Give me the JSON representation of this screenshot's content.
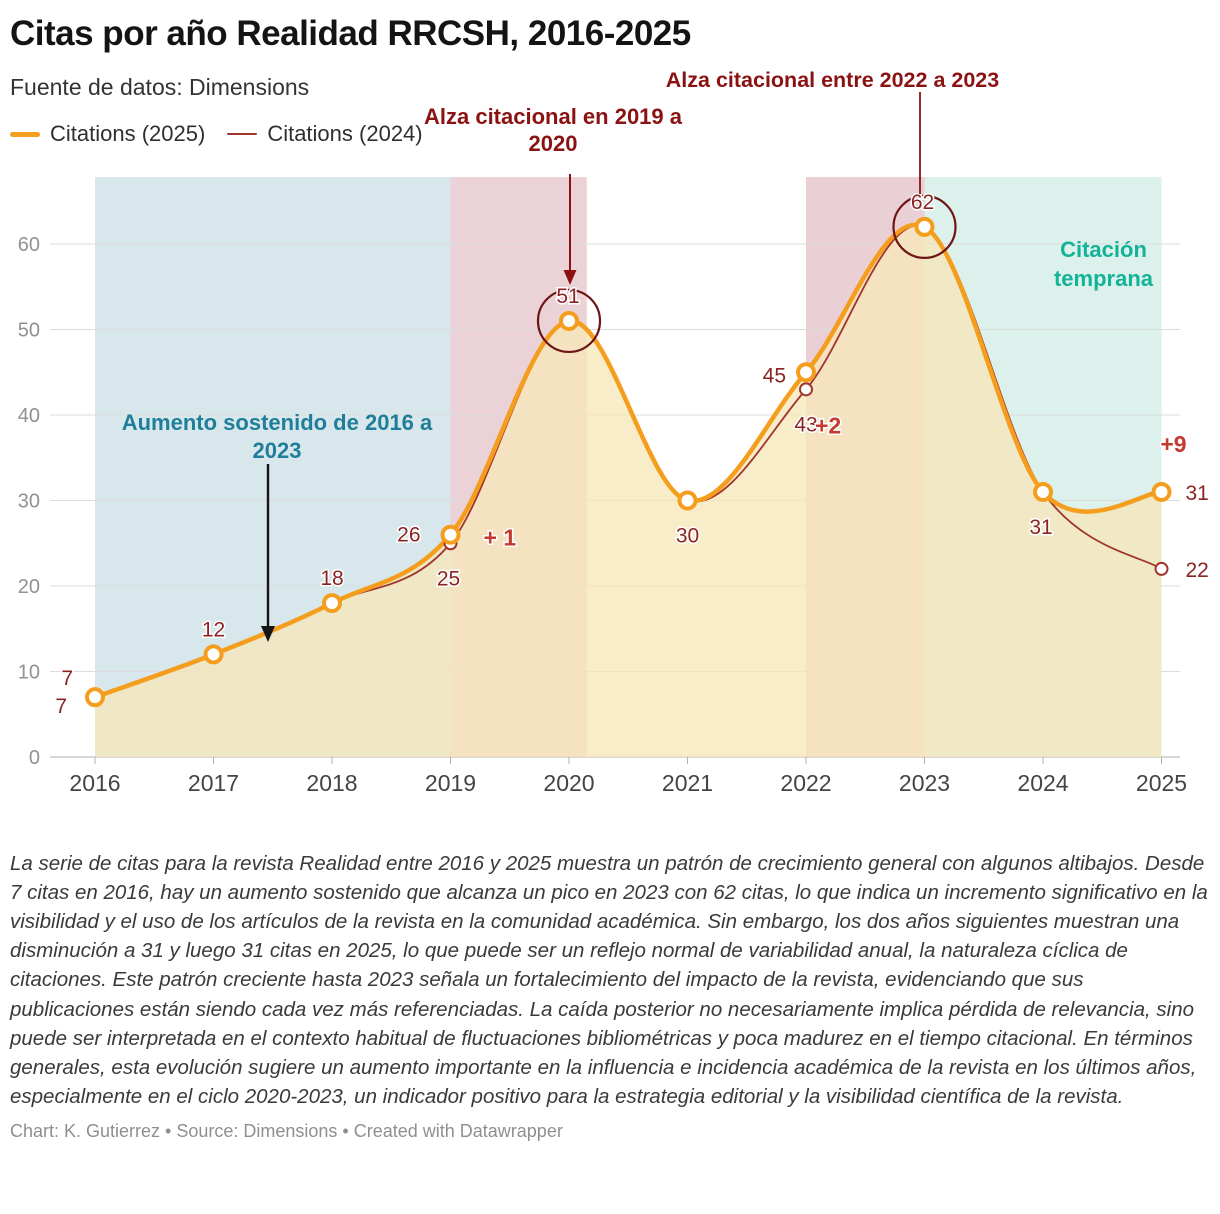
{
  "header": {
    "title": "Citas por año Realidad RRCSH, 2016-2025",
    "subtitle": "Fuente de datos: Dimensions"
  },
  "legend": [
    {
      "label": "Citations (2025)",
      "color": "#f59e1d",
      "thick": true
    },
    {
      "label": "Citations (2024)",
      "color": "#a0352c",
      "thick": false
    }
  ],
  "annotations": {
    "sustained_growth": "Aumento sostenido de 2016 a 2023",
    "rise_2019_2020": "Alza citacional en 2019 a 2020",
    "rise_2022_2023": "Alza citacional entre 2022 a 2023",
    "early_citation": "Citación temprana"
  },
  "chart_data": {
    "type": "line",
    "title": "Citas por año Realidad RRCSH, 2016-2025",
    "x": [
      2016,
      2017,
      2018,
      2019,
      2020,
      2021,
      2022,
      2023,
      2024,
      2025
    ],
    "series": [
      {
        "name": "Citations (2025)",
        "color": "#f59e1d",
        "values": [
          7,
          12,
          18,
          26,
          51,
          30,
          45,
          62,
          31,
          31
        ]
      },
      {
        "name": "Citations (2024)",
        "color": "#a0352c",
        "values": [
          7,
          12,
          18,
          25,
          51,
          30,
          43,
          62,
          31,
          22
        ]
      }
    ],
    "ylim": [
      0,
      67
    ],
    "yticks": [
      0,
      10,
      20,
      30,
      40,
      50,
      60
    ],
    "grid": true,
    "legend_position": "top-left",
    "regions": [
      {
        "from": 2016,
        "to": 2019,
        "color": "#d7e7eb"
      },
      {
        "from": 2019,
        "to": 2020.15,
        "color": "#ead2d6"
      },
      {
        "from": 2022,
        "to": 2023,
        "color": "#ead0d5"
      },
      {
        "from": 2023,
        "to": 2025,
        "color": "#ddf1ec"
      }
    ],
    "area_fill": {
      "series": "Citations (2025)",
      "color": "#f6e7ba",
      "opacity": 0.78
    },
    "highlight_circles": [
      {
        "x": 2020,
        "y": 51
      },
      {
        "x": 2023,
        "y": 62
      }
    ],
    "diff_labels": [
      {
        "x": 2019,
        "text": "+ 1"
      },
      {
        "x": 2022,
        "text": "+2"
      },
      {
        "x": 2025,
        "text": "+9"
      }
    ],
    "colors": {
      "value_label": "#8b2323",
      "diff_label": "#c43a2f",
      "annotation_red": "#8b1212",
      "annotation_blue": "#1f7e99",
      "annotation_teal": "#13b398",
      "highlight_circle": "#6d1414",
      "arrow_black": "#161616",
      "grid": "#dcdcdc",
      "axis": "#b0b0b0"
    }
  },
  "description": "La serie de citas para la revista Realidad entre 2016 y 2025 muestra un patrón de crecimiento general con algunos altibajos. Desde 7 citas en 2016, hay un aumento sostenido que alcanza un pico en 2023 con 62 citas, lo que indica un incremento significativo en la visibilidad y el uso de los artículos de la revista en la comunidad académica. Sin embargo, los dos años siguientes muestran una disminución a 31 y luego 31 citas en 2025, lo que puede ser un reflejo normal de variabilidad anual, la naturaleza cíclica de citaciones. Este patrón creciente hasta 2023 señala un fortalecimiento del impacto de la revista, evidenciando que sus publicaciones están siendo cada vez más referenciadas. La caída posterior no necesariamente implica pérdida de relevancia, sino puede ser interpretada en el contexto habitual de fluctuaciones bibliométricas y poca madurez en el tiempo citacional. En términos generales, esta evolución sugiere un aumento importante en la influencia e incidencia académica de la revista en los últimos años, especialmente en el ciclo 2020-2023, un indicador positivo para la estrategia editorial y la visibilidad científica de la revista.",
  "footer": "Chart: K. Gutierrez • Source: Dimensions • Created with Datawrapper"
}
